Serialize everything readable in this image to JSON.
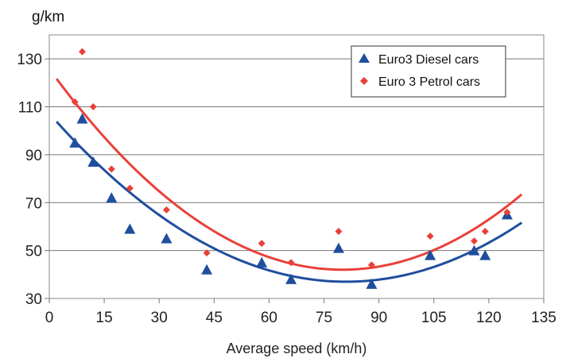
{
  "chart_data": {
    "type": "scatter",
    "title": "",
    "ylabel": "g/km",
    "xlabel": "Average speed (km/h)",
    "xlim": [
      0,
      135
    ],
    "ylim": [
      30,
      140
    ],
    "xticks": [
      "0",
      "15",
      "30",
      "45",
      "60",
      "75",
      "90",
      "105",
      "120",
      "135"
    ],
    "yticks": [
      "30",
      "50",
      "70",
      "90",
      "110",
      "130"
    ],
    "grid": "horizontal",
    "legend_position": "top-right",
    "series": [
      {
        "name": "Euro3 Diesel cars",
        "marker": "triangle",
        "color": "#1f4e9e",
        "points": [
          [
            7,
            95
          ],
          [
            9,
            105
          ],
          [
            12,
            87
          ],
          [
            17,
            72
          ],
          [
            22,
            59
          ],
          [
            32,
            55
          ],
          [
            43,
            42
          ],
          [
            58,
            45
          ],
          [
            66,
            38
          ],
          [
            79,
            51
          ],
          [
            88,
            36
          ],
          [
            104,
            48
          ],
          [
            116,
            50
          ],
          [
            119,
            48
          ],
          [
            125,
            65
          ]
        ],
        "trend": {
          "type": "quadratic",
          "from": 2,
          "to": 129,
          "a": 0.0107,
          "vertex_x": 81,
          "vertex_y": 37
        }
      },
      {
        "name": "Euro 3 Petrol cars",
        "marker": "diamond",
        "color": "#e8413a",
        "points": [
          [
            7,
            112
          ],
          [
            9,
            133
          ],
          [
            12,
            110
          ],
          [
            17,
            84
          ],
          [
            22,
            76
          ],
          [
            32,
            67
          ],
          [
            43,
            49
          ],
          [
            58,
            53
          ],
          [
            66,
            45
          ],
          [
            79,
            58
          ],
          [
            88,
            44
          ],
          [
            104,
            56
          ],
          [
            116,
            54
          ],
          [
            119,
            58
          ],
          [
            125,
            66
          ]
        ],
        "trend": {
          "type": "quadratic",
          "from": 2,
          "to": 129,
          "a": 0.0131,
          "vertex_x": 80,
          "vertex_y": 42
        }
      }
    ]
  }
}
